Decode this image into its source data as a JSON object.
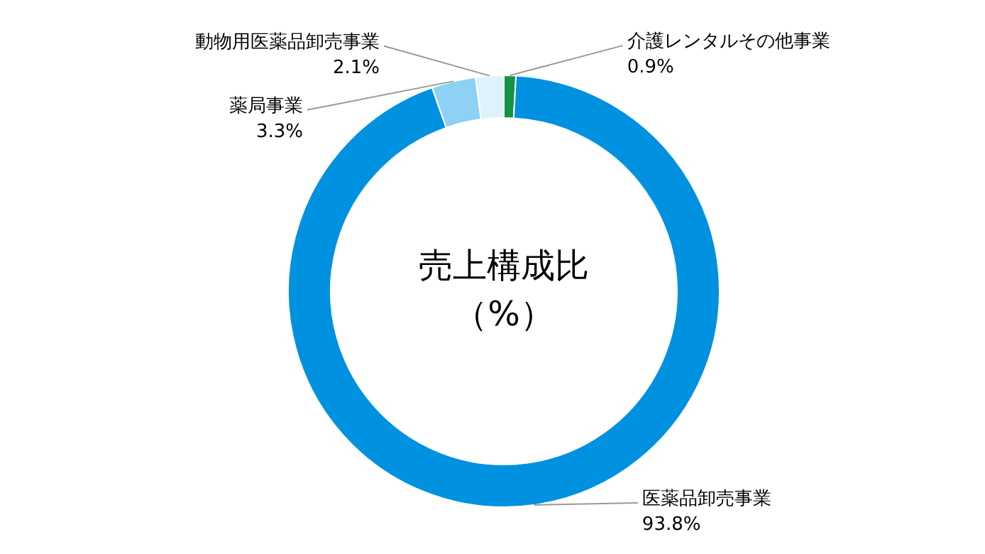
{
  "chart_data": {
    "type": "donut",
    "title": "売上構成比",
    "subtitle": "（%）",
    "categories": [
      "介護レンタルその他事業",
      "医薬品卸売事業",
      "薬局事業",
      "動物用医薬品卸売事業"
    ],
    "values": [
      0.9,
      93.8,
      3.3,
      2.1
    ],
    "value_labels": [
      "0.9%",
      "93.8%",
      "3.3%",
      "2.1%"
    ],
    "colors": [
      "#139444",
      "#0091e0",
      "#8dd1f4",
      "#dff2fc"
    ]
  }
}
